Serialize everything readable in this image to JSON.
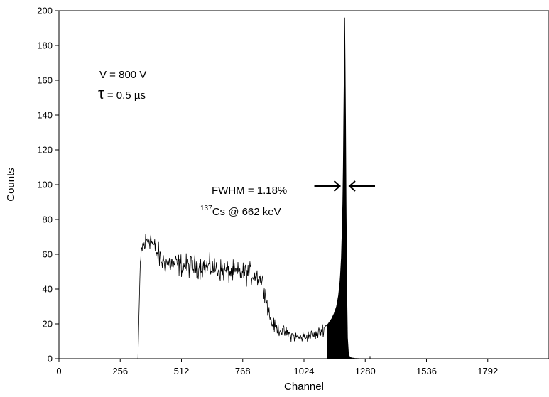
{
  "chart_data": {
    "type": "line",
    "xlabel": "Channel",
    "ylabel": "Counts",
    "xlim": [
      0,
      2048
    ],
    "ylim": [
      0,
      200
    ],
    "x_ticks": [
      0,
      256,
      512,
      768,
      1024,
      1280,
      1536,
      1792
    ],
    "y_ticks": [
      0,
      20,
      40,
      60,
      80,
      100,
      120,
      140,
      160,
      180,
      200
    ],
    "grid": false,
    "legend": "none",
    "annotations": {
      "voltage": "V = 800 V",
      "tau_symbol": "τ",
      "tau_value": " = 0.5 µs",
      "fwhm": "FWHM = 1.18%",
      "isotope_mass": "137",
      "isotope_line": "Cs @ 662 keV"
    },
    "fwhm_arrow_channels": [
      1174,
      1214
    ],
    "fwhm_level": 100,
    "photopeak": {
      "channel": 1194,
      "counts": 196,
      "filled_from_channel": 1120
    },
    "spectrum": {
      "x": [
        0,
        330,
        338,
        345,
        360,
        380,
        400,
        430,
        460,
        500,
        550,
        600,
        650,
        700,
        750,
        790,
        820,
        845,
        860,
        875,
        890,
        905,
        930,
        960,
        1000,
        1040,
        1080,
        1110,
        1125,
        1140,
        1150,
        1160,
        1168,
        1175,
        1180,
        1185,
        1188,
        1191,
        1194,
        1197,
        1200,
        1203,
        1206,
        1210,
        1215,
        1222,
        1235,
        1260,
        1300,
        1380,
        1500,
        1700,
        2048
      ],
      "y": [
        0,
        0,
        45,
        63,
        66,
        70,
        63,
        56,
        55,
        54,
        53,
        53,
        52,
        50,
        49,
        49,
        48,
        46,
        40,
        28,
        20,
        18,
        16,
        14,
        12,
        13,
        14,
        18,
        20,
        23,
        26,
        30,
        36,
        45,
        58,
        80,
        110,
        150,
        196,
        160,
        90,
        40,
        12,
        3,
        1,
        0.5,
        0.2,
        0,
        0,
        0,
        0,
        0,
        0
      ]
    }
  }
}
